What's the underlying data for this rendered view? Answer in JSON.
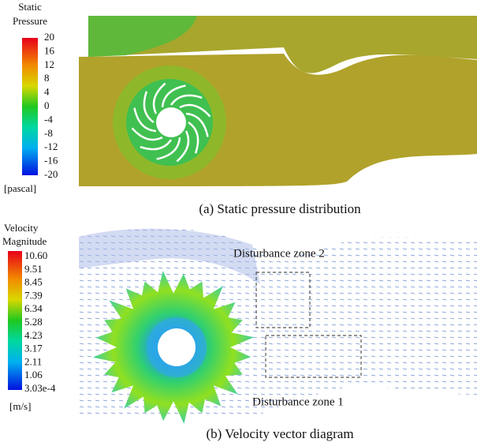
{
  "panel_a": {
    "legend_title": [
      "Static",
      "Pressure"
    ],
    "legend_labels": [
      "20",
      "16",
      "12",
      "8",
      "4",
      "0",
      "-4",
      "-8",
      "-12",
      "-16",
      "-20"
    ],
    "unit": "[pascal]",
    "caption": "(a) Static pressure distribution"
  },
  "panel_b": {
    "legend_title": [
      "Velocity",
      "Magnitude"
    ],
    "legend_labels": [
      "10.60",
      "9.51",
      "8.45",
      "7.39",
      "6.34",
      "5.28",
      "4.23",
      "3.17",
      "2.11",
      "1.06",
      "3.03e-4"
    ],
    "unit": "[m/s]",
    "annotations": [
      "Disturbance zone 2",
      "Disturbance zone 1"
    ],
    "caption": "(b) Velocity vector diagram"
  }
}
